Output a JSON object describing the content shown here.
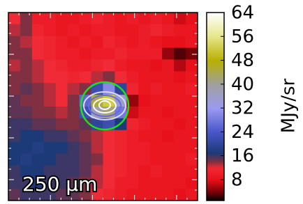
{
  "chart_data": {
    "type": "heatmap",
    "label": "250 μm",
    "colorbar_label": "MJy/sr",
    "clim": [
      1,
      64
    ],
    "cticks": [
      8,
      16,
      24,
      32,
      40,
      48,
      56,
      64
    ],
    "colormap": [
      {
        "value": 1,
        "color": "#000000"
      },
      {
        "value": 4,
        "color": "#7a0008"
      },
      {
        "value": 8,
        "color": "#e8101a"
      },
      {
        "value": 12,
        "color": "#f02a36"
      },
      {
        "value": 14,
        "color": "#803040"
      },
      {
        "value": 17,
        "color": "#1c3a78"
      },
      {
        "value": 24,
        "color": "#4a56c8"
      },
      {
        "value": 32,
        "color": "#9a9af0"
      },
      {
        "value": 40,
        "color": "#a0a0a0"
      },
      {
        "value": 48,
        "color": "#b8b000"
      },
      {
        "value": 56,
        "color": "#e6e68a"
      },
      {
        "value": 64,
        "color": "#ffffff"
      }
    ],
    "z": [
      [
        12,
        14,
        10,
        10,
        9,
        9,
        10,
        11,
        10,
        9,
        10,
        9,
        10,
        9,
        7,
        8
      ],
      [
        13,
        14,
        11,
        10,
        9,
        10,
        9,
        10,
        10,
        9,
        9,
        10,
        11,
        10,
        9,
        9
      ],
      [
        14,
        13,
        12,
        11,
        10,
        9,
        10,
        9,
        11,
        10,
        9,
        10,
        9,
        8,
        8,
        9
      ],
      [
        14,
        14,
        12,
        11,
        10,
        10,
        9,
        10,
        10,
        11,
        10,
        10,
        10,
        5,
        3,
        4
      ],
      [
        13,
        14,
        13,
        12,
        11,
        10,
        10,
        11,
        12,
        10,
        9,
        9,
        8,
        9,
        6,
        8
      ],
      [
        14,
        14,
        13,
        12,
        12,
        11,
        12,
        13,
        14,
        12,
        10,
        9,
        9,
        9,
        8,
        9
      ],
      [
        14,
        15,
        14,
        13,
        12,
        13,
        14,
        22,
        30,
        20,
        11,
        9,
        10,
        9,
        9,
        10
      ],
      [
        15,
        14,
        14,
        13,
        12,
        14,
        26,
        45,
        52,
        35,
        5,
        8,
        9,
        9,
        9,
        9
      ],
      [
        15,
        15,
        14,
        14,
        13,
        14,
        22,
        38,
        42,
        28,
        7,
        9,
        9,
        8,
        9,
        9
      ],
      [
        16,
        16,
        15,
        15,
        14,
        14,
        15,
        20,
        22,
        17,
        11,
        10,
        9,
        9,
        8,
        9
      ],
      [
        16,
        17,
        17,
        16,
        16,
        15,
        14,
        13,
        12,
        11,
        10,
        9,
        9,
        8,
        9,
        9
      ],
      [
        17,
        17,
        18,
        17,
        17,
        16,
        15,
        13,
        12,
        11,
        10,
        10,
        9,
        9,
        9,
        9
      ],
      [
        17,
        18,
        17,
        17,
        16,
        16,
        15,
        14,
        12,
        11,
        10,
        10,
        9,
        9,
        9,
        10
      ],
      [
        16,
        17,
        17,
        16,
        16,
        16,
        15,
        13,
        12,
        11,
        10,
        9,
        10,
        9,
        9,
        9
      ],
      [
        16,
        16,
        17,
        16,
        16,
        15,
        14,
        13,
        12,
        10,
        10,
        9,
        9,
        9,
        9,
        8
      ],
      [
        15,
        16,
        16,
        16,
        15,
        15,
        14,
        12,
        11,
        10,
        9,
        9,
        9,
        9,
        8,
        9
      ]
    ]
  }
}
